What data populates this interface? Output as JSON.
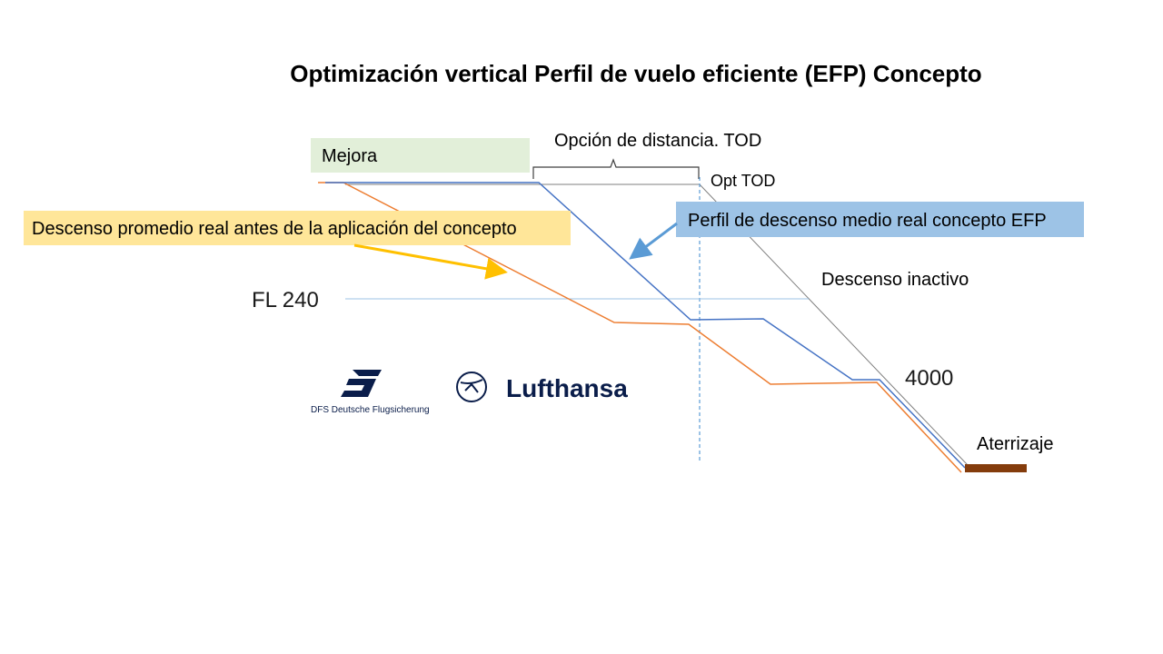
{
  "title": "Optimización vertical Perfil de vuelo eficiente (EFP) Concepto",
  "labels": {
    "mejora": "Mejora",
    "opcion_distancia": "Opción de distancia. TOD",
    "opt_tod": "Opt TOD",
    "descenso_promedio": "Descenso promedio real antes de la aplicación del concepto",
    "perfil_descenso": "Perfil de descenso medio real concepto EFP",
    "descenso_inactivo": "Descenso inactivo",
    "fl240": "FL 240",
    "alt4000": "4000",
    "aterrizaje": "Aterrizaje"
  },
  "logos": {
    "dfs_text": "DFS Deutsche Flugsicherung",
    "lufthansa_text": "Lufthansa"
  },
  "colors": {
    "orange_profile": "#ED7D31",
    "blue_profile": "#4472C4",
    "idle_line": "#7f7f7f",
    "fl_line": "#9dc3e6",
    "arrow_yellow": "#FFC000",
    "arrow_blue": "#5B9BD5",
    "mejora_fill": "#e2efd9",
    "promedio_fill": "#FFE699",
    "perfil_fill": "#9DC3E6",
    "runway": "#843c0c"
  }
}
